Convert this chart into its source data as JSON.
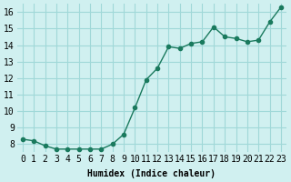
{
  "x": [
    0,
    1,
    2,
    3,
    4,
    5,
    6,
    7,
    8,
    9,
    10,
    11,
    12,
    13,
    14,
    15,
    16,
    17,
    18,
    19,
    20,
    21,
    22,
    23
  ],
  "y": [
    8.3,
    8.2,
    7.9,
    7.7,
    7.7,
    7.7,
    7.7,
    7.7,
    8.0,
    8.6,
    10.2,
    11.9,
    12.6,
    13.9,
    13.8,
    14.1,
    14.2,
    15.1,
    14.5,
    14.4,
    14.2,
    14.3,
    15.4,
    16.3
  ],
  "line_color": "#1a7a5e",
  "bg_color": "#d0f0f0",
  "grid_color": "#a0d8d8",
  "xlabel": "Humidex (Indice chaleur)",
  "xlim": [
    -0.5,
    23.5
  ],
  "ylim": [
    7.5,
    16.5
  ],
  "xtick_labels": [
    "0",
    "1",
    "2",
    "3",
    "4",
    "5",
    "6",
    "7",
    "8",
    "9",
    "10",
    "11",
    "12",
    "13",
    "14",
    "15",
    "16",
    "17",
    "18",
    "19",
    "20",
    "21",
    "22",
    "23"
  ],
  "ytick_values": [
    8,
    9,
    10,
    11,
    12,
    13,
    14,
    15,
    16
  ],
  "font_size": 7,
  "marker_size": 3,
  "line_width": 1.0
}
